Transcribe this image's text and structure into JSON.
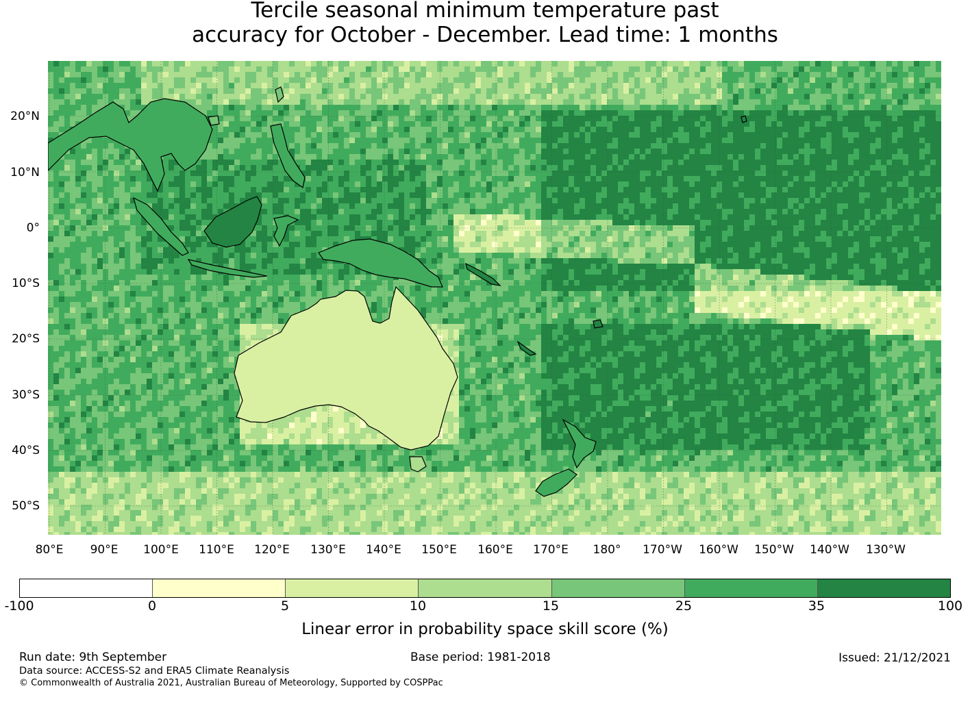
{
  "title": {
    "line1": "Tercile seasonal minimum temperature past",
    "line2": "accuracy for October - December. Lead time: 1 months"
  },
  "map": {
    "lat_labels": [
      "20°N",
      "10°N",
      "0°",
      "10°S",
      "20°S",
      "30°S",
      "40°S",
      "50°S"
    ],
    "lon_labels": [
      "80°E",
      "90°E",
      "100°E",
      "110°E",
      "120°E",
      "130°E",
      "140°E",
      "150°E",
      "160°E",
      "170°E",
      "180°",
      "170°W",
      "160°W",
      "150°W",
      "140°W",
      "130°W"
    ],
    "region": "Australia, Maritime Continent and western/central Pacific"
  },
  "legend": {
    "title": "Linear error in probability space skill score (%)",
    "ticks": [
      "-100",
      "0",
      "5",
      "10",
      "15",
      "25",
      "35",
      "100"
    ],
    "colors": [
      "#ffffff",
      "#ffffcc",
      "#d9f0a3",
      "#addd8e",
      "#78c679",
      "#41ab5d",
      "#238443"
    ]
  },
  "footer": {
    "run_date": "Run date: 9th September",
    "base_period": "Base period: 1981-2018",
    "issued": "Issued: 21/12/2021",
    "data_source": "Data source: ACCESS-S2 and ERA5 Climate Reanalysis",
    "copyright": "© Commonwealth of Australia 2021, Australian Bureau of Meteorology, Supported by COSPPac"
  }
}
